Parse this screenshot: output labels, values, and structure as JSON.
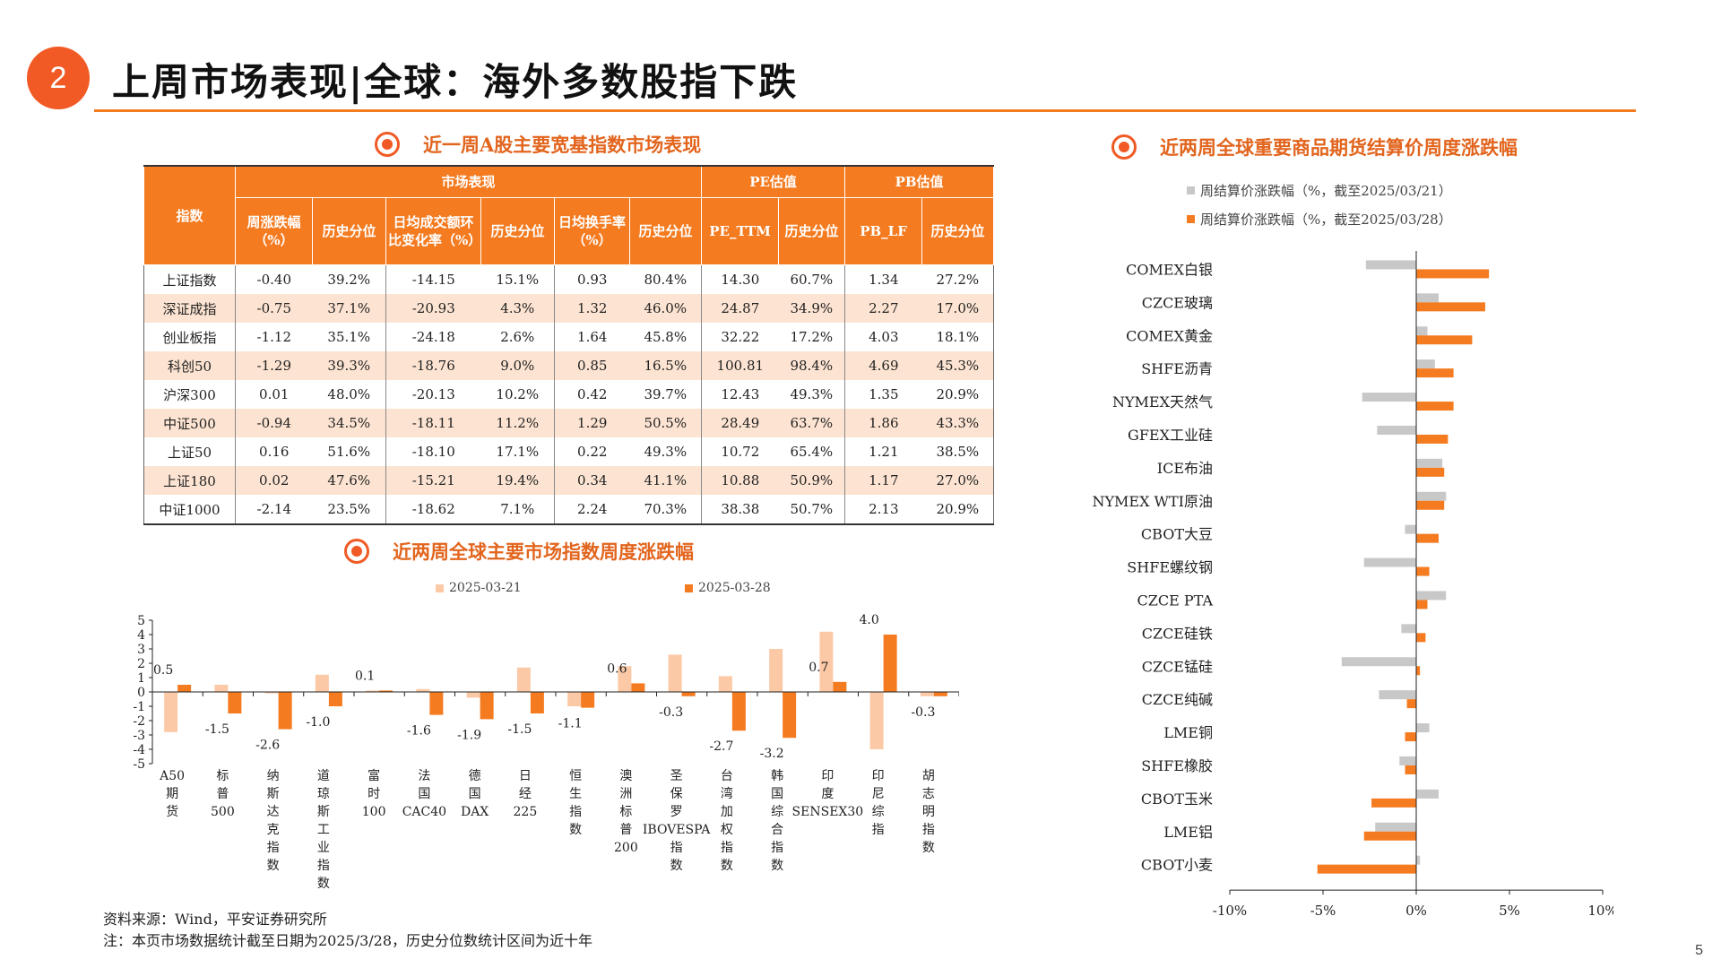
{
  "header": {
    "badge": "2",
    "title": "上周市场表现|全球：海外多数股指下跌"
  },
  "colors": {
    "accent": "#f47b20",
    "light": "#fcc9a7",
    "gray": "#c8c8c8",
    "row_alt": "#fde4d2"
  },
  "table_section": {
    "title": "近一周A股主要宽基指数市场表现",
    "group_headers": {
      "index": "指数",
      "market": "市场表现",
      "pe": "PE估值",
      "pb": "PB估值"
    },
    "sub_headers": {
      "weekly_change": "周涨跌幅（%）",
      "hist_pct": "历史分位",
      "turnover_change": "日均成交额环比变化率（%）",
      "turnover_rate": "日均换手率（%）",
      "pe_ttm": "PE_TTM",
      "pb_lf": "PB_LF"
    },
    "rows": [
      [
        "上证指数",
        "-0.40",
        "39.2%",
        "-14.15",
        "15.1%",
        "0.93",
        "80.4%",
        "14.30",
        "60.7%",
        "1.34",
        "27.2%"
      ],
      [
        "深证成指",
        "-0.75",
        "37.1%",
        "-20.93",
        "4.3%",
        "1.32",
        "46.0%",
        "24.87",
        "34.9%",
        "2.27",
        "17.0%"
      ],
      [
        "创业板指",
        "-1.12",
        "35.1%",
        "-24.18",
        "2.6%",
        "1.64",
        "45.8%",
        "32.22",
        "17.2%",
        "4.03",
        "18.1%"
      ],
      [
        "科创50",
        "-1.29",
        "39.3%",
        "-18.76",
        "9.0%",
        "0.85",
        "16.5%",
        "100.81",
        "98.4%",
        "4.69",
        "45.3%"
      ],
      [
        "沪深300",
        "0.01",
        "48.0%",
        "-20.13",
        "10.2%",
        "0.42",
        "39.7%",
        "12.43",
        "49.3%",
        "1.35",
        "20.9%"
      ],
      [
        "中证500",
        "-0.94",
        "34.5%",
        "-18.11",
        "11.2%",
        "1.29",
        "50.5%",
        "28.49",
        "63.7%",
        "1.86",
        "43.3%"
      ],
      [
        "上证50",
        "0.16",
        "51.6%",
        "-18.10",
        "17.1%",
        "0.22",
        "49.3%",
        "10.72",
        "65.4%",
        "1.21",
        "38.5%"
      ],
      [
        "上证180",
        "0.02",
        "47.6%",
        "-15.21",
        "19.4%",
        "0.34",
        "41.1%",
        "10.88",
        "50.9%",
        "1.17",
        "27.0%"
      ],
      [
        "中证1000",
        "-2.14",
        "23.5%",
        "-18.62",
        "7.1%",
        "2.24",
        "70.3%",
        "38.38",
        "50.7%",
        "2.13",
        "20.9%"
      ]
    ]
  },
  "chart_data": [
    {
      "type": "bar",
      "title": "近两周全球主要市场指数周度涨跌幅",
      "categories": [
        "A50期货",
        "标普500",
        "纳斯达克指数",
        "道琼斯工业指数",
        "富时100",
        "法国CAC40",
        "德国DAX",
        "日经225",
        "恒生指数",
        "澳洲标普200",
        "圣保罗IBOVESPA指数",
        "台湾加权指数",
        "韩国综合指数",
        "印度SENSEX30",
        "印尼综指",
        "胡志明指数"
      ],
      "series": [
        {
          "name": "2025-03-21",
          "values": [
            -2.8,
            0.5,
            -0.1,
            1.2,
            0.1,
            0.2,
            -0.4,
            1.7,
            -1.0,
            1.8,
            2.6,
            1.1,
            3.0,
            4.2,
            -4.0,
            -0.3
          ]
        },
        {
          "name": "2025-03-28",
          "values": [
            0.5,
            -1.5,
            -2.6,
            -1.0,
            0.1,
            -1.6,
            -1.9,
            -1.5,
            -1.1,
            0.6,
            -0.3,
            -2.7,
            -3.2,
            0.7,
            4.0,
            -0.3
          ]
        }
      ],
      "data_labels": [
        "0.5",
        "-1.5",
        "-2.6",
        "-1.0",
        "0.1",
        "-1.6",
        "-1.9",
        "-1.5",
        "-1.1",
        "0.6",
        "-0.3",
        "-2.7",
        "-3.2",
        "0.7",
        "4.0",
        "-0.3"
      ],
      "y_ticks": [
        "5",
        "4",
        "3",
        "2",
        "1",
        "0",
        "-1",
        "-2",
        "-3",
        "-4",
        "-5"
      ],
      "ylim": [
        -5,
        5
      ],
      "legend": "top"
    },
    {
      "type": "bar",
      "orientation": "horizontal",
      "title": "近两周全球重要商品期货结算价周度涨跌幅",
      "categories": [
        "COMEX白银",
        "CZCE玻璃",
        "COMEX黄金",
        "SHFE沥青",
        "NYMEX天然气",
        "GFEX工业硅",
        "ICE布油",
        "NYMEX WTI原油",
        "CBOT大豆",
        "SHFE螺纹钢",
        "CZCE PTA",
        "CZCE硅铁",
        "CZCE锰硅",
        "CZCE纯碱",
        "LME铜",
        "SHFE橡胶",
        "CBOT玉米",
        "LME铝",
        "CBOT小麦"
      ],
      "series": [
        {
          "name": "周结算价涨跌幅（%，截至2025/03/21）",
          "values": [
            -2.7,
            1.2,
            0.6,
            1.0,
            -2.9,
            -2.1,
            1.4,
            1.6,
            -0.6,
            -2.8,
            1.6,
            -0.8,
            -4.0,
            -2.0,
            0.7,
            -0.9,
            1.2,
            -2.2,
            0.2
          ]
        },
        {
          "name": "周结算价涨跌幅（%，截至2025/03/28）",
          "values": [
            3.9,
            3.7,
            3.0,
            2.0,
            2.0,
            1.7,
            1.5,
            1.5,
            1.2,
            0.7,
            0.6,
            0.5,
            0.2,
            -0.5,
            -0.6,
            -0.6,
            -2.4,
            -2.8,
            -5.3
          ]
        }
      ],
      "x_ticks": [
        "-10%",
        "-5%",
        "0%",
        "5%",
        "10%"
      ],
      "xlim": [
        -10,
        10
      ],
      "legend": "top-left"
    }
  ],
  "footer": {
    "source": "资料来源：Wind，平安证券研究所",
    "note": "注：本页市场数据统计截至日期为2025/3/28，历史分位数统计区间为近十年"
  },
  "page_number": "5"
}
